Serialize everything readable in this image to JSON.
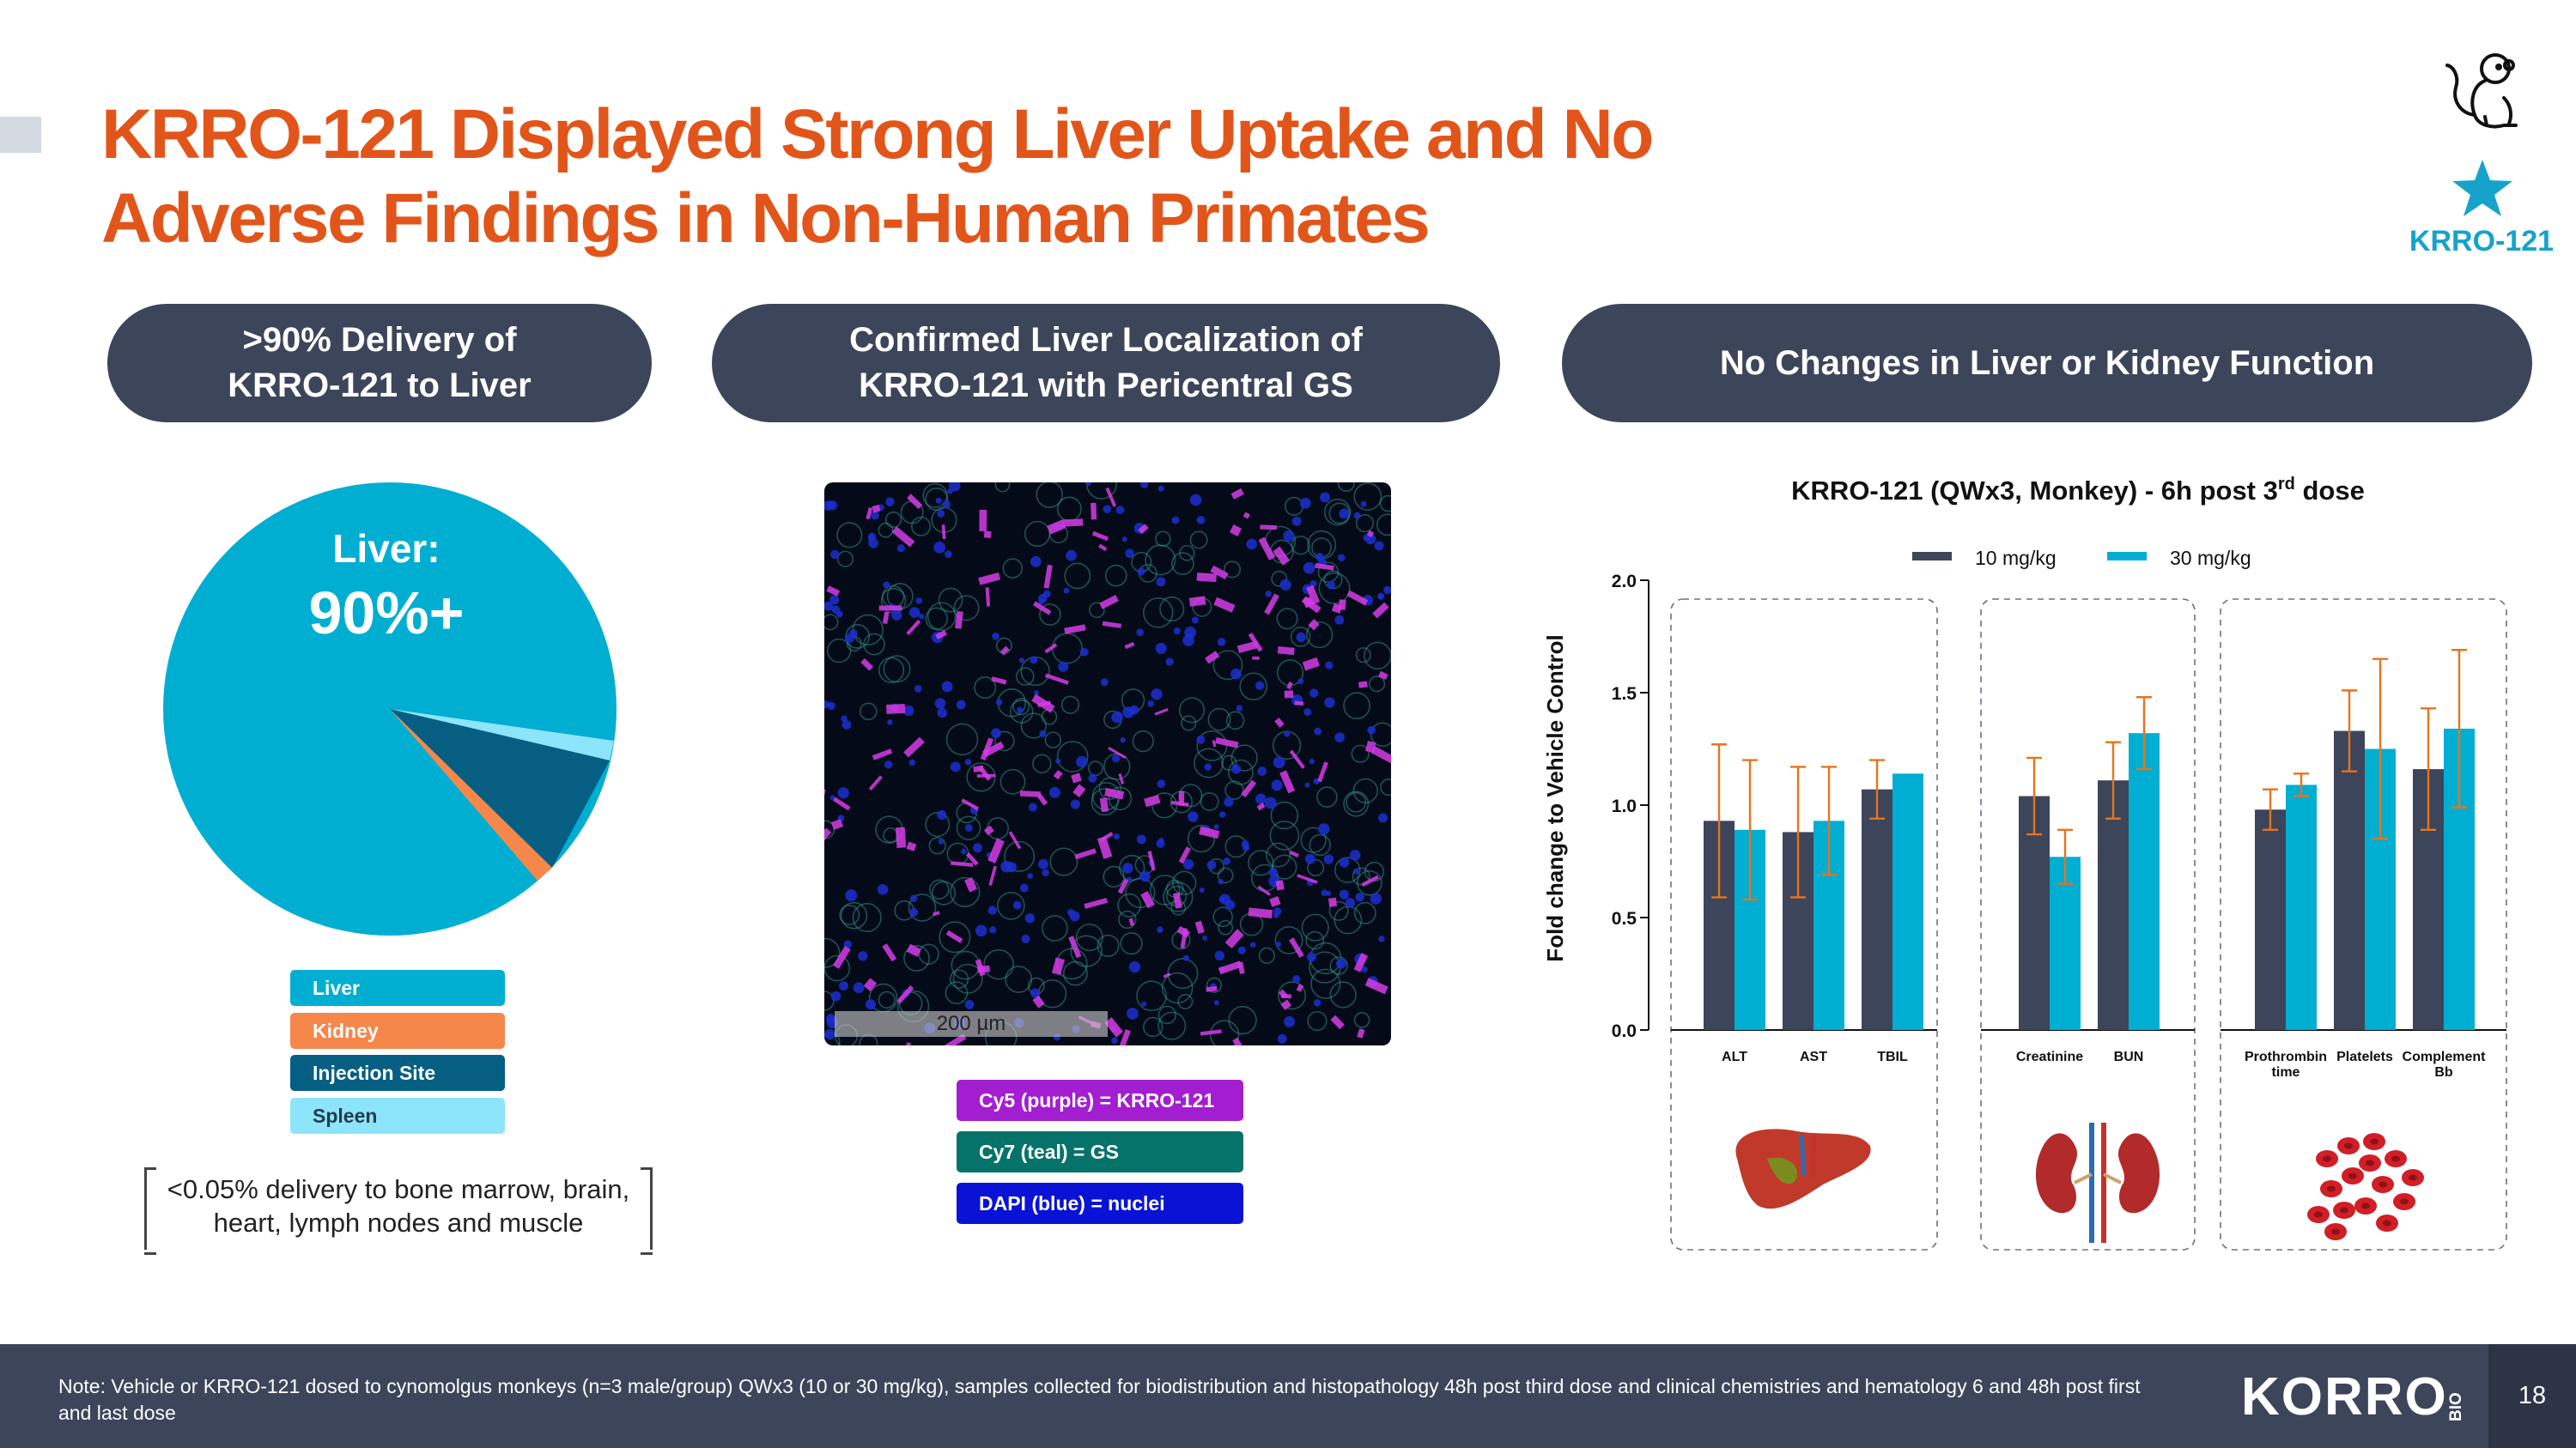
{
  "title": "KRRO-121 Displayed Strong Liver Uptake and No Adverse Findings in Non-Human Primates",
  "drug_tag": "KRRO-121",
  "panels": {
    "delivery": {
      "header_line1": ">90% Delivery of",
      "header_line2": "KRRO-121 to Liver"
    },
    "localization": {
      "header_line1": "Confirmed Liver Localization of",
      "header_line2": "KRRO-121 with Pericentral GS"
    },
    "function": {
      "header": "No Changes in Liver or Kidney Function"
    }
  },
  "pie": {
    "center_label_name": "Liver:",
    "center_label_value": "90%+",
    "legend": [
      {
        "label": "Liver",
        "color": "#00aed2"
      },
      {
        "label": "Kidney",
        "color": "#f6874b"
      },
      {
        "label": "Injection Site",
        "color": "#065f82"
      },
      {
        "label": "Spleen",
        "color": "#8de5fb"
      }
    ],
    "note": "<0.05% delivery to bone marrow, brain, heart, lymph nodes and muscle"
  },
  "microscopy": {
    "scalebar": "200 µm",
    "stains": [
      {
        "label": "Cy5 (purple) = KRRO-121",
        "color": "#a31ed1"
      },
      {
        "label": "Cy7 (teal) = GS",
        "color": "#06736b"
      },
      {
        "label": "DAPI (blue) = nuclei",
        "color": "#0a12d6"
      }
    ]
  },
  "chart_data": {
    "type": "bar",
    "title_main": "KRRO-121  (QWx3, Monkey) - 6h post 3",
    "title_sup": "rd",
    "title_end": " dose",
    "ylabel": "Fold change to Vehicle Control",
    "ylim": [
      0,
      2.0
    ],
    "yticks": [
      "0.0",
      "0.5",
      "1.0",
      "1.5",
      "2.0"
    ],
    "legend_position": "top-center",
    "categories": [
      "ALT",
      "AST",
      "TBIL",
      "Creatinine",
      "BUN",
      "Prothrombin time",
      "Platelets",
      "Complement Bb"
    ],
    "category_labels": [
      [
        "ALT"
      ],
      [
        "AST"
      ],
      [
        "TBIL"
      ],
      [
        "Creatinine"
      ],
      [
        "BUN"
      ],
      [
        "Prothrombin",
        "time"
      ],
      [
        "Platelets"
      ],
      [
        "Complement",
        "Bb"
      ]
    ],
    "groups": [
      {
        "category_indices": [
          0,
          1,
          2
        ],
        "icon": "liver-icon"
      },
      {
        "category_indices": [
          3,
          4
        ],
        "icon": "kidney-icon"
      },
      {
        "category_indices": [
          5,
          6,
          7
        ],
        "icon": "blood-cells-icon"
      }
    ],
    "series": [
      {
        "name": "10 mg/kg",
        "color": "#3c4559",
        "values": [
          0.93,
          0.88,
          1.07,
          1.04,
          1.11,
          0.98,
          1.33,
          1.16
        ],
        "errors": [
          0.34,
          0.29,
          0.13,
          0.17,
          0.17,
          0.09,
          0.18,
          0.27
        ]
      },
      {
        "name": "30 mg/kg",
        "color": "#00aed2",
        "values": [
          0.89,
          0.93,
          1.14,
          0.77,
          1.32,
          1.09,
          1.25,
          1.34
        ],
        "errors": [
          0.31,
          0.24,
          0.0,
          0.12,
          0.16,
          0.05,
          0.4,
          0.35
        ]
      }
    ],
    "error_bar_color": "#e8731c"
  },
  "footer": {
    "note": "Note: Vehicle or KRRO-121 dosed to cynomolgus monkeys (n=3 male/group) QWx3 (10 or 30 mg/kg), samples collected for biodistribution and histopathology 48h post third dose and clinical chemistries and hematology 6 and 48h post first and last dose",
    "logo": "KORRO",
    "logo_suffix": "BIO",
    "page_number": "18"
  },
  "icons": [
    "monkey-icon",
    "star-icon",
    "liver-icon",
    "kidney-icon",
    "blood-cells-icon"
  ]
}
